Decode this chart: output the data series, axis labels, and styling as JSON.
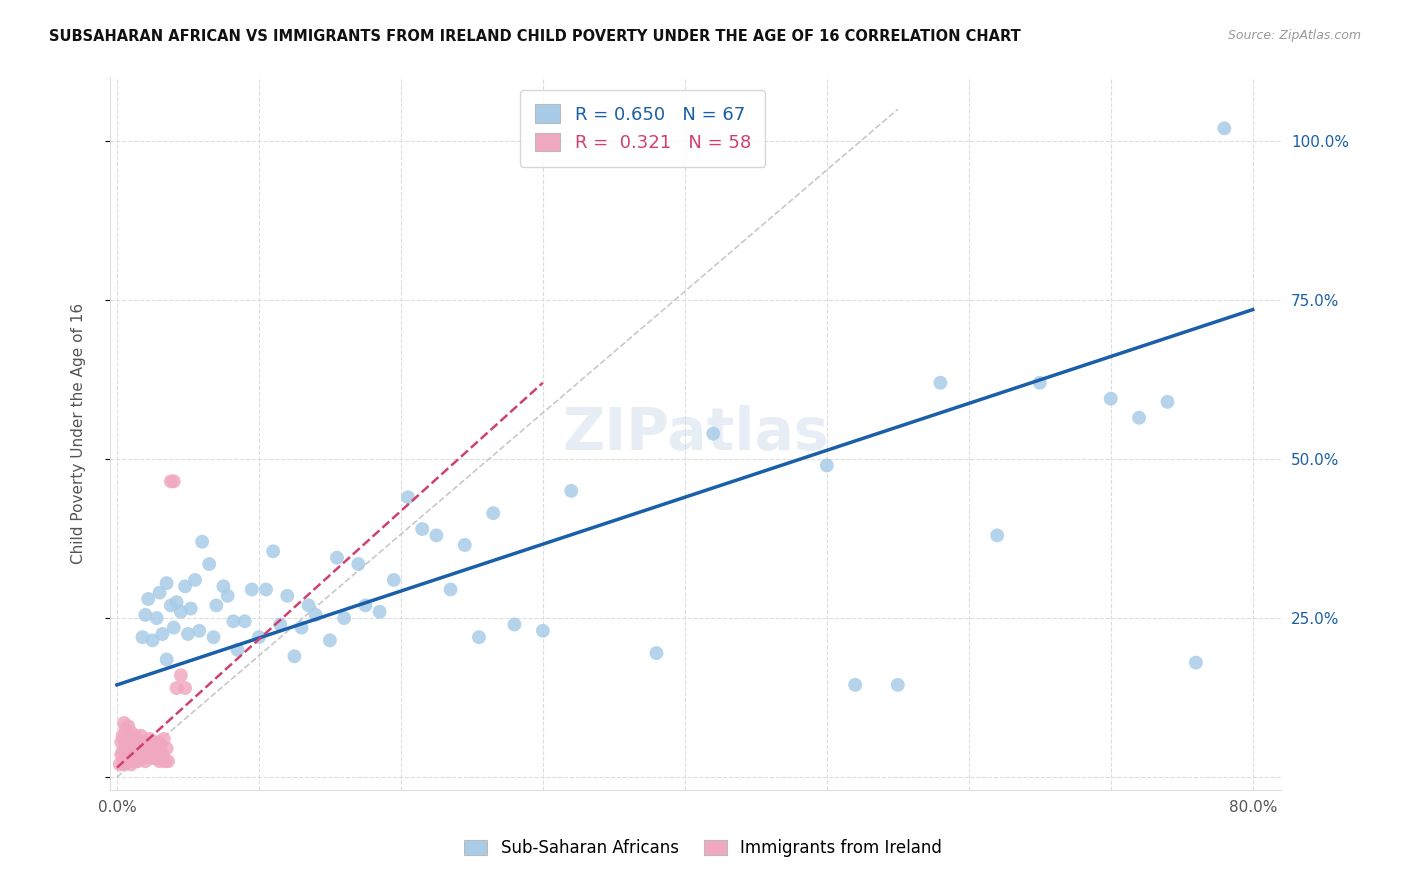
{
  "title": "SUBSAHARAN AFRICAN VS IMMIGRANTS FROM IRELAND CHILD POVERTY UNDER THE AGE OF 16 CORRELATION CHART",
  "source": "Source: ZipAtlas.com",
  "ylabel": "Child Poverty Under the Age of 16",
  "legend_label_1": "Sub-Saharan Africans",
  "legend_label_2": "Immigrants from Ireland",
  "R1": 0.65,
  "N1": 67,
  "R2": 0.321,
  "N2": 58,
  "xlim": [
    -0.005,
    0.82
  ],
  "ylim": [
    -0.02,
    1.1
  ],
  "color_blue": "#A8CCE8",
  "color_pink": "#F0A8C0",
  "color_blue_line": "#1A5FA8",
  "color_pink_line": "#D04070",
  "color_gray_dash": "#BBBBBB",
  "blue_x": [
    0.018,
    0.02,
    0.022,
    0.025,
    0.028,
    0.03,
    0.032,
    0.035,
    0.035,
    0.038,
    0.04,
    0.042,
    0.045,
    0.048,
    0.05,
    0.052,
    0.055,
    0.058,
    0.06,
    0.065,
    0.068,
    0.07,
    0.075,
    0.078,
    0.082,
    0.085,
    0.09,
    0.095,
    0.1,
    0.105,
    0.11,
    0.115,
    0.12,
    0.125,
    0.13,
    0.135,
    0.14,
    0.15,
    0.155,
    0.16,
    0.17,
    0.175,
    0.185,
    0.195,
    0.205,
    0.215,
    0.225,
    0.235,
    0.245,
    0.255,
    0.265,
    0.28,
    0.3,
    0.32,
    0.38,
    0.42,
    0.5,
    0.52,
    0.55,
    0.58,
    0.62,
    0.65,
    0.7,
    0.72,
    0.74,
    0.76,
    0.78
  ],
  "blue_y": [
    0.22,
    0.255,
    0.28,
    0.215,
    0.25,
    0.29,
    0.225,
    0.185,
    0.305,
    0.27,
    0.235,
    0.275,
    0.26,
    0.3,
    0.225,
    0.265,
    0.31,
    0.23,
    0.37,
    0.335,
    0.22,
    0.27,
    0.3,
    0.285,
    0.245,
    0.2,
    0.245,
    0.295,
    0.22,
    0.295,
    0.355,
    0.24,
    0.285,
    0.19,
    0.235,
    0.27,
    0.255,
    0.215,
    0.345,
    0.25,
    0.335,
    0.27,
    0.26,
    0.31,
    0.44,
    0.39,
    0.38,
    0.295,
    0.365,
    0.22,
    0.415,
    0.24,
    0.23,
    0.45,
    0.195,
    0.54,
    0.49,
    0.145,
    0.145,
    0.62,
    0.38,
    0.62,
    0.595,
    0.565,
    0.59,
    0.18,
    1.02
  ],
  "pink_x": [
    0.002,
    0.003,
    0.003,
    0.004,
    0.004,
    0.005,
    0.005,
    0.005,
    0.005,
    0.006,
    0.006,
    0.006,
    0.007,
    0.007,
    0.008,
    0.008,
    0.008,
    0.009,
    0.009,
    0.01,
    0.01,
    0.01,
    0.011,
    0.011,
    0.012,
    0.012,
    0.013,
    0.013,
    0.014,
    0.015,
    0.015,
    0.016,
    0.017,
    0.018,
    0.018,
    0.019,
    0.02,
    0.021,
    0.022,
    0.023,
    0.024,
    0.025,
    0.026,
    0.027,
    0.028,
    0.029,
    0.03,
    0.031,
    0.032,
    0.033,
    0.034,
    0.035,
    0.036,
    0.038,
    0.04,
    0.042,
    0.045,
    0.048
  ],
  "pink_y": [
    0.02,
    0.035,
    0.055,
    0.04,
    0.065,
    0.02,
    0.04,
    0.06,
    0.085,
    0.03,
    0.055,
    0.075,
    0.035,
    0.06,
    0.025,
    0.05,
    0.08,
    0.035,
    0.06,
    0.02,
    0.045,
    0.07,
    0.035,
    0.06,
    0.025,
    0.055,
    0.035,
    0.065,
    0.04,
    0.025,
    0.055,
    0.04,
    0.065,
    0.03,
    0.055,
    0.045,
    0.025,
    0.05,
    0.035,
    0.06,
    0.04,
    0.03,
    0.055,
    0.04,
    0.03,
    0.055,
    0.025,
    0.05,
    0.035,
    0.06,
    0.025,
    0.045,
    0.025,
    0.465,
    0.465,
    0.14,
    0.16,
    0.14
  ],
  "blue_line_x": [
    0.0,
    0.8
  ],
  "blue_line_y": [
    0.145,
    0.735
  ],
  "pink_line_x": [
    0.0,
    0.3
  ],
  "pink_line_y": [
    0.015,
    0.62
  ],
  "gray_line_x": [
    0.0,
    0.55
  ],
  "gray_line_y": [
    0.0,
    1.05
  ],
  "ytick_positions": [
    0.0,
    0.25,
    0.5,
    0.75,
    1.0
  ],
  "ytick_labels_right": [
    "",
    "25.0%",
    "50.0%",
    "75.0%",
    "100.0%"
  ],
  "xtick_positions": [
    0.0,
    0.1,
    0.2,
    0.3,
    0.4,
    0.5,
    0.6,
    0.7,
    0.8
  ],
  "xtick_labels": [
    "0.0%",
    "",
    "",
    "",
    "",
    "",
    "",
    "",
    "80.0%"
  ],
  "background_color": "#FFFFFF",
  "grid_color": "#DDDDDD"
}
